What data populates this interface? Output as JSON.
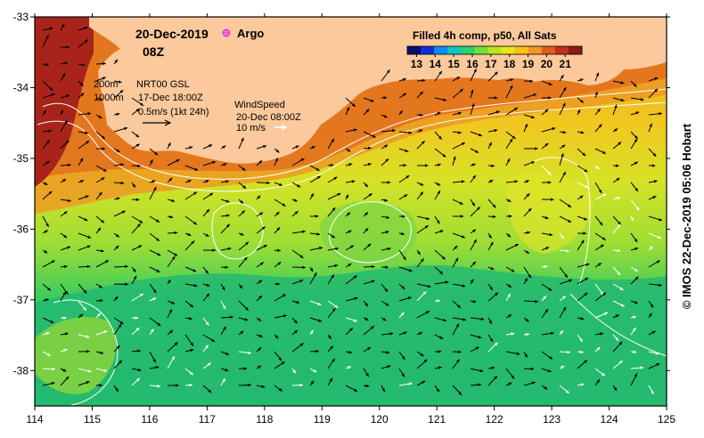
{
  "header": {
    "date": "20-Dec-2019",
    "time": "08Z",
    "argo_label": "Argo"
  },
  "legend": {
    "title": "Filled 4h comp, p50, All Sats",
    "ticks": [
      "13",
      "14",
      "15",
      "16",
      "17",
      "18",
      "19",
      "20",
      "21"
    ],
    "range": [
      12.5,
      21.9
    ],
    "colors": [
      "#0b0b6e",
      "#0a2fd0",
      "#0c8cf0",
      "#13c4c8",
      "#2fd070",
      "#6ee03a",
      "#b8e61c",
      "#e6e61e",
      "#f5c31a",
      "#f3952a",
      "#e35c1c",
      "#c0301c",
      "#8a1c14"
    ]
  },
  "annotations": {
    "depth_200": "200m",
    "depth_1000": "1000m",
    "nrt_label": "NRT00 GSL",
    "nrt_date": "17-Dec 18:00Z",
    "current_scale": "0.5m/s (1kt 24h)",
    "wind_label": "WindSpeed",
    "wind_date": "20-Dec 08:00Z",
    "wind_scale": "10 m/s"
  },
  "axes": {
    "lon_ticks": [
      "114",
      "115",
      "116",
      "117",
      "118",
      "119",
      "120",
      "121",
      "122",
      "123",
      "124",
      "125"
    ],
    "lat_ticks": [
      "-33",
      "-34",
      "-35",
      "-36",
      "-37",
      "-38"
    ],
    "lon_range": [
      114,
      125
    ],
    "lat_range": [
      -38.5,
      -33
    ]
  },
  "colors": {
    "land": "#fbc99b",
    "border": "#000000",
    "argo": "#e040e0"
  },
  "credit": "© IMOS 22-Dec-2019 05:06 Hobart"
}
